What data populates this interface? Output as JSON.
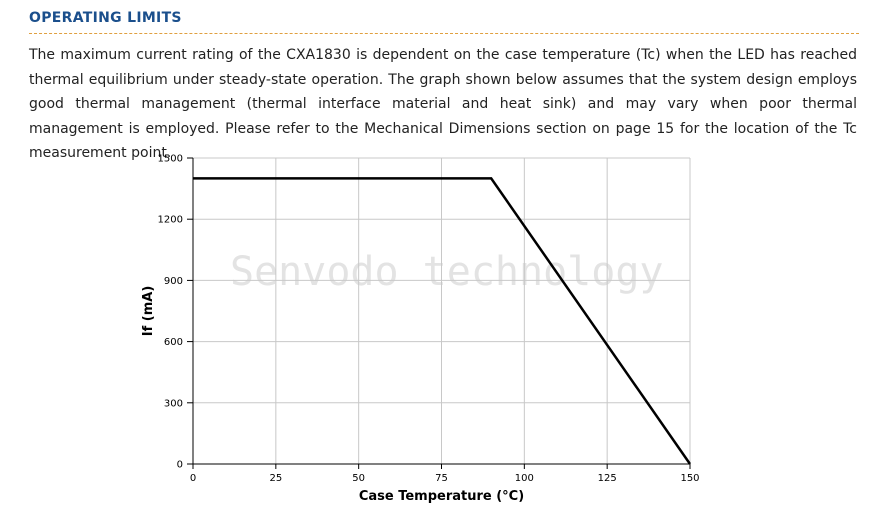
{
  "section": {
    "title": "OPERATING LIMITS",
    "body": "The maximum current rating of the CXA1830 is dependent on the case temperature (Tc) when the LED has reached thermal equilibrium under steady-state operation. The graph shown below assumes that the system design employs good thermal management (thermal interface material and heat sink) and may vary when poor thermal management is employed. Please refer to the Mechanical Dimensions section on page 15 for the location of the Tc measurement point."
  },
  "watermark": "Senvodo technology",
  "colors": {
    "title": "#1b4f8c",
    "rule": "#e0a040",
    "grid": "#c8c8c8",
    "line": "#000000"
  },
  "chart_data": {
    "type": "line",
    "title": "",
    "xlabel": "Case Temperature (°C)",
    "ylabel": "If (mA)",
    "xlim": [
      0,
      150
    ],
    "ylim": [
      0,
      1500
    ],
    "xticks": [
      0,
      25,
      50,
      75,
      100,
      125,
      150
    ],
    "yticks": [
      0,
      300,
      600,
      900,
      1200,
      1500
    ],
    "grid": true,
    "series": [
      {
        "x": [
          0,
          90,
          150
        ],
        "y": [
          1400,
          1400,
          0
        ]
      }
    ]
  }
}
